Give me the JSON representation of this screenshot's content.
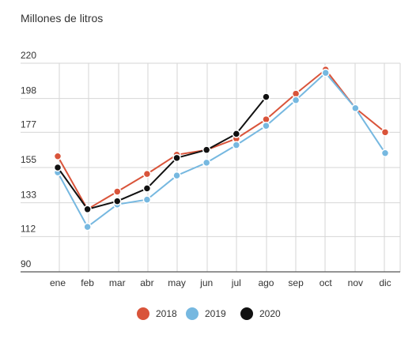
{
  "chart_data": {
    "type": "line",
    "title": "Millones de litros",
    "xlabel": "",
    "ylabel": "",
    "categories": [
      "ene",
      "feb",
      "mar",
      "abr",
      "may",
      "jun",
      "jul",
      "ago",
      "sep",
      "oct",
      "nov",
      "dic"
    ],
    "yticks": [
      "220",
      "198",
      "177",
      "155",
      "133",
      "112",
      "90"
    ],
    "ylim": [
      90,
      220
    ],
    "grid": true,
    "legend_position": "bottom",
    "series": [
      {
        "name": "2018",
        "color": "#d9543a",
        "values": [
          162,
          129,
          140,
          151,
          163,
          166,
          173,
          185,
          201,
          216,
          192,
          177
        ]
      },
      {
        "name": "2019",
        "color": "#76b8e0",
        "values": [
          152,
          118,
          132,
          135,
          150,
          158,
          169,
          181,
          197,
          214,
          192,
          164
        ]
      },
      {
        "name": "2020",
        "color": "#111111",
        "values": [
          155,
          129,
          134,
          142,
          161,
          166,
          176,
          199,
          null,
          null,
          null,
          null
        ]
      }
    ]
  }
}
